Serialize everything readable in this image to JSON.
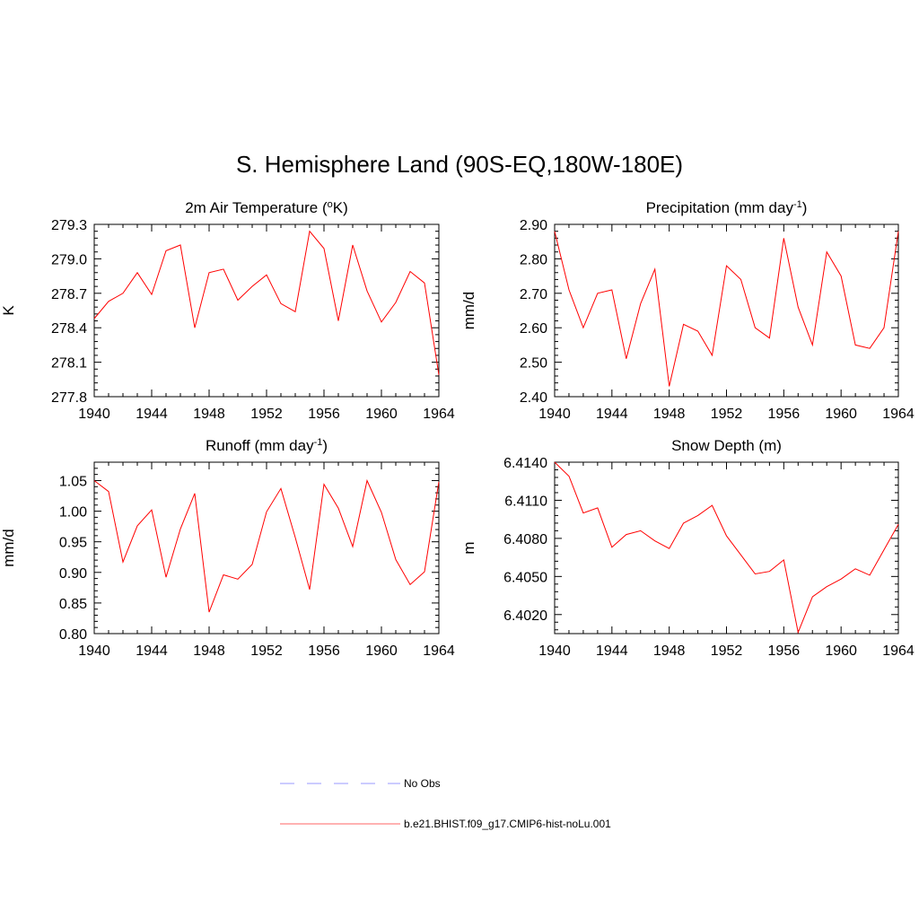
{
  "title": "S. Hemisphere Land (90S-EQ,180W-180E)",
  "chart_data": [
    {
      "type": "line",
      "title_main": "2m Air Temperature (",
      "title_sup": "o",
      "title_end": "K)",
      "ylabel": "K",
      "xlim": [
        1940,
        1964
      ],
      "ylim": [
        277.8,
        279.3
      ],
      "xticks": [
        "1940",
        "1944",
        "1948",
        "1952",
        "1956",
        "1960",
        "1964"
      ],
      "yticks": [
        "277.8",
        "278.1",
        "278.4",
        "278.7",
        "279.0",
        "279.3"
      ],
      "x": [
        1940,
        1941,
        1942,
        1943,
        1944,
        1945,
        1946,
        1947,
        1948,
        1949,
        1950,
        1951,
        1952,
        1953,
        1954,
        1955,
        1956,
        1957,
        1958,
        1959,
        1960,
        1961,
        1962,
        1963,
        1964
      ],
      "series": [
        {
          "name": "b.e21.BHIST.f09_g17.CMIP6-hist-noLu.001",
          "color": "#ff0000",
          "values": [
            278.48,
            278.63,
            278.7,
            278.88,
            278.69,
            279.07,
            279.12,
            278.4,
            278.88,
            278.91,
            278.64,
            278.76,
            278.86,
            278.61,
            278.54,
            279.24,
            279.09,
            278.46,
            279.12,
            278.72,
            278.45,
            278.62,
            278.89,
            278.79,
            277.99
          ]
        }
      ]
    },
    {
      "type": "line",
      "title_main": "Precipitation (mm day",
      "title_sup": "-1",
      "title_end": ")",
      "ylabel": "mm/d",
      "xlim": [
        1940,
        1964
      ],
      "ylim": [
        2.4,
        2.9
      ],
      "xticks": [
        "1940",
        "1944",
        "1948",
        "1952",
        "1956",
        "1960",
        "1964"
      ],
      "yticks": [
        "2.40",
        "2.50",
        "2.60",
        "2.70",
        "2.80",
        "2.90"
      ],
      "x": [
        1940,
        1941,
        1942,
        1943,
        1944,
        1945,
        1946,
        1947,
        1948,
        1949,
        1950,
        1951,
        1952,
        1953,
        1954,
        1955,
        1956,
        1957,
        1958,
        1959,
        1960,
        1961,
        1962,
        1963,
        1964
      ],
      "series": [
        {
          "name": "b.e21.BHIST.f09_g17.CMIP6-hist-noLu.001",
          "color": "#ff0000",
          "values": [
            2.88,
            2.71,
            2.6,
            2.7,
            2.71,
            2.51,
            2.67,
            2.77,
            2.43,
            2.61,
            2.59,
            2.52,
            2.78,
            2.74,
            2.6,
            2.57,
            2.86,
            2.66,
            2.55,
            2.82,
            2.75,
            2.55,
            2.54,
            2.6,
            2.88
          ]
        }
      ]
    },
    {
      "type": "line",
      "title_main": "Runoff (mm day",
      "title_sup": "-1",
      "title_end": ")",
      "ylabel": "mm/d",
      "xlim": [
        1940,
        1964
      ],
      "ylim": [
        0.8,
        1.08
      ],
      "xticks": [
        "1940",
        "1944",
        "1948",
        "1952",
        "1956",
        "1960",
        "1964"
      ],
      "yticks": [
        "0.80",
        "0.85",
        "0.90",
        "0.95",
        "1.00",
        "1.05"
      ],
      "x": [
        1940,
        1941,
        1942,
        1943,
        1944,
        1945,
        1946,
        1947,
        1948,
        1949,
        1950,
        1951,
        1952,
        1953,
        1954,
        1955,
        1956,
        1957,
        1958,
        1959,
        1960,
        1961,
        1962,
        1963,
        1964
      ],
      "series": [
        {
          "name": "b.e21.BHIST.f09_g17.CMIP6-hist-noLu.001",
          "color": "#ff0000",
          "values": [
            1.05,
            1.032,
            0.917,
            0.976,
            1.002,
            0.892,
            0.971,
            1.029,
            0.835,
            0.896,
            0.889,
            0.913,
            0.999,
            1.037,
            0.957,
            0.872,
            1.044,
            1.005,
            0.942,
            1.05,
            0.998,
            0.921,
            0.88,
            0.901,
            1.048
          ]
        }
      ]
    },
    {
      "type": "line",
      "title_main": "Snow Depth (m)",
      "title_sup": "",
      "title_end": "",
      "ylabel": "m",
      "xlim": [
        1940,
        1964
      ],
      "ylim": [
        6.4005,
        6.414
      ],
      "xticks": [
        "1940",
        "1944",
        "1948",
        "1952",
        "1956",
        "1960",
        "1964"
      ],
      "yticks": [
        "6.4020",
        "6.4050",
        "6.4080",
        "6.4110",
        "6.4140"
      ],
      "x": [
        1940,
        1941,
        1942,
        1943,
        1944,
        1945,
        1946,
        1947,
        1948,
        1949,
        1950,
        1951,
        1952,
        1953,
        1954,
        1955,
        1956,
        1957,
        1958,
        1959,
        1960,
        1961,
        1962,
        1963,
        1964
      ],
      "series": [
        {
          "name": "b.e21.BHIST.f09_g17.CMIP6-hist-noLu.001",
          "color": "#ff0000",
          "values": [
            6.414,
            6.4129,
            6.41,
            6.4104,
            6.4073,
            6.4083,
            6.4086,
            6.4078,
            6.4072,
            6.4092,
            6.4098,
            6.4106,
            6.4082,
            6.4067,
            6.4052,
            6.4054,
            6.4063,
            6.4006,
            6.4034,
            6.4042,
            6.4048,
            6.4056,
            6.4051,
            6.4071,
            6.4091
          ]
        }
      ]
    }
  ],
  "legend": [
    {
      "label": "No Obs",
      "color": "#9999ff",
      "style": "dashed"
    },
    {
      "label": "b.e21.BHIST.f09_g17.CMIP6-hist-noLu.001",
      "color": "#ff6666",
      "style": "solid"
    }
  ]
}
